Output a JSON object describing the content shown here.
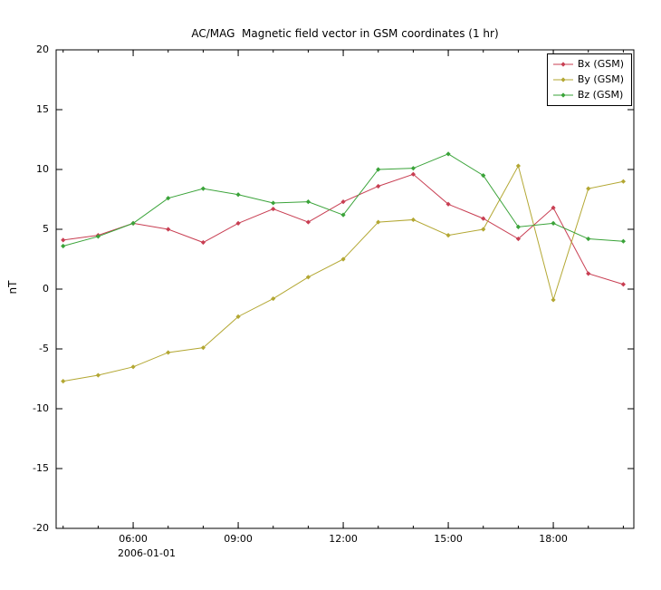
{
  "chart_data": {
    "type": "line",
    "title": "AC/MAG  Magnetic field vector in GSM coordinates (1 hr)",
    "ylabel": "nT",
    "date_label": "2006-01-01",
    "grid": false,
    "legend_position": "top-right",
    "ylim": [
      -20,
      20
    ],
    "yticks": [
      20,
      15,
      10,
      5,
      0,
      -5,
      -10,
      -15,
      -20
    ],
    "xlim": [
      3.8,
      20.3
    ],
    "x": [
      4,
      5,
      6,
      7,
      8,
      9,
      10,
      11,
      12,
      13,
      14,
      15,
      16,
      17,
      18,
      19,
      20
    ],
    "xticks": [
      {
        "hour": 6,
        "label": "06:00"
      },
      {
        "hour": 9,
        "label": "09:00"
      },
      {
        "hour": 12,
        "label": "12:00"
      },
      {
        "hour": 15,
        "label": "15:00"
      },
      {
        "hour": 18,
        "label": "18:00"
      }
    ],
    "series": [
      {
        "name": "Bx (GSM)",
        "color": "#c83e52",
        "values": [
          4.1,
          4.5,
          5.5,
          5.0,
          3.9,
          5.5,
          6.7,
          5.6,
          7.3,
          8.6,
          9.6,
          7.1,
          5.9,
          4.2,
          6.8,
          1.3,
          0.4
        ]
      },
      {
        "name": "By (GSM)",
        "color": "#b3a732",
        "values": [
          -7.7,
          -7.2,
          -6.5,
          -5.3,
          -4.9,
          -2.3,
          -0.8,
          1.0,
          2.5,
          5.6,
          5.8,
          4.5,
          5.0,
          10.3,
          -0.9,
          8.4,
          9.0
        ]
      },
      {
        "name": "Bz (GSM)",
        "color": "#3aa339",
        "values": [
          3.6,
          4.4,
          5.5,
          7.6,
          8.4,
          7.9,
          7.2,
          7.3,
          6.2,
          10.0,
          10.1,
          11.3,
          9.5,
          5.2,
          5.5,
          4.2,
          4.0
        ]
      }
    ]
  }
}
